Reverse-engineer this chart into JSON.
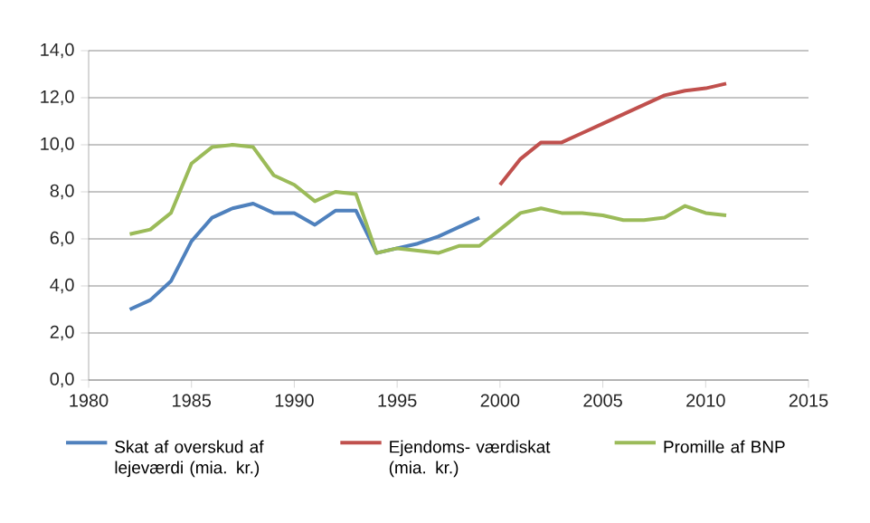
{
  "chart_data": {
    "type": "line",
    "x": [
      1982,
      1983,
      1984,
      1985,
      1986,
      1987,
      1988,
      1989,
      1990,
      1991,
      1992,
      1993,
      1994,
      1995,
      1996,
      1997,
      1998,
      1999,
      2000,
      2001,
      2002,
      2003,
      2004,
      2005,
      2006,
      2007,
      2008,
      2009,
      2010,
      2011
    ],
    "series": [
      {
        "name": "Skat af overskud af lejeværdi (mia. kr.)",
        "color": "#4f81bd",
        "values": [
          3.0,
          3.4,
          4.2,
          5.9,
          6.9,
          7.3,
          7.5,
          7.1,
          7.1,
          6.6,
          7.2,
          7.2,
          5.4,
          5.6,
          5.8,
          6.1,
          6.5,
          6.9,
          null,
          null,
          null,
          null,
          null,
          null,
          null,
          null,
          null,
          null,
          null,
          null
        ]
      },
      {
        "name": "Ejendoms- værdiskat (mia. kr.)",
        "color": "#c0504d",
        "values": [
          null,
          null,
          null,
          null,
          null,
          null,
          null,
          null,
          null,
          null,
          null,
          null,
          null,
          null,
          null,
          null,
          null,
          null,
          8.3,
          9.4,
          10.1,
          10.1,
          10.5,
          10.9,
          11.3,
          11.7,
          12.1,
          12.3,
          12.4,
          12.6
        ]
      },
      {
        "name": "Promille af BNP",
        "color": "#9bbb59",
        "values": [
          6.2,
          6.4,
          7.1,
          9.2,
          9.9,
          10.0,
          9.9,
          8.7,
          8.3,
          7.6,
          8.0,
          7.9,
          5.4,
          5.6,
          5.5,
          5.4,
          5.7,
          5.7,
          6.4,
          7.1,
          7.3,
          7.1,
          7.1,
          7.0,
          6.8,
          6.8,
          6.9,
          7.4,
          7.1,
          7.0
        ]
      }
    ],
    "xlim": [
      1980,
      2015
    ],
    "xticks": [
      1980,
      1985,
      1990,
      1995,
      2000,
      2005,
      2010,
      2015
    ],
    "ylim": [
      0,
      14
    ],
    "yticks": [
      {
        "value": 0,
        "label": "0,0"
      },
      {
        "value": 2,
        "label": "2,0"
      },
      {
        "value": 4,
        "label": "4,0"
      },
      {
        "value": 6,
        "label": "6,0"
      },
      {
        "value": 8,
        "label": "8,0"
      },
      {
        "value": 10,
        "label": "10,0"
      },
      {
        "value": 12,
        "label": "12,0"
      },
      {
        "value": 14,
        "label": "14,0"
      }
    ],
    "grid": "y",
    "legend": "bottom",
    "marker": "none",
    "line_style": "solid"
  }
}
